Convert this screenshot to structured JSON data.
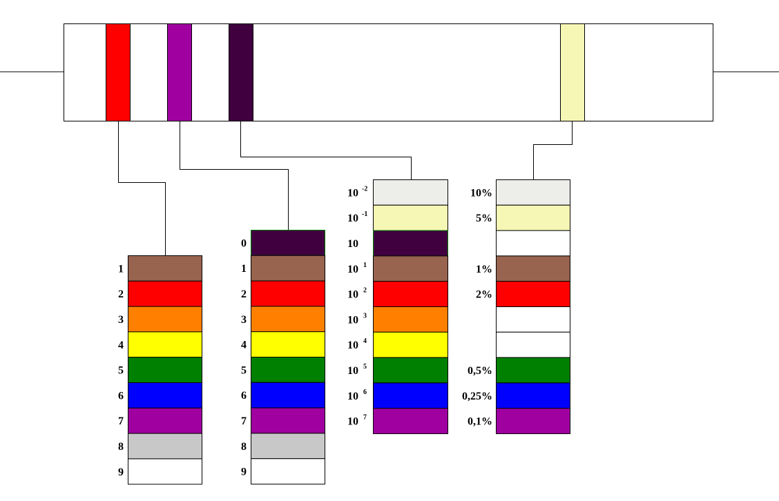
{
  "resistor": {
    "body_color": "#ffffff",
    "outline_color": "#000000",
    "bands": [
      {
        "name": "band-1-digit",
        "color": "#ff0000"
      },
      {
        "name": "band-2-digit",
        "color": "#a000a0"
      },
      {
        "name": "band-3-multiplier",
        "color": "#400040"
      },
      {
        "name": "band-4-tolerance",
        "color": "#f7f7b5"
      }
    ]
  },
  "tables": {
    "first_digit": {
      "rows": [
        {
          "label": "1",
          "color": "#98634f"
        },
        {
          "label": "2",
          "color": "#ff0000"
        },
        {
          "label": "3",
          "color": "#ff8000"
        },
        {
          "label": "4",
          "color": "#ffff00"
        },
        {
          "label": "5",
          "color": "#008000"
        },
        {
          "label": "6",
          "color": "#0000ff"
        },
        {
          "label": "7",
          "color": "#a000a0"
        },
        {
          "label": "8",
          "color": "#c8c8c8"
        },
        {
          "label": "9",
          "color": "#ffffff"
        }
      ]
    },
    "second_digit": {
      "rows": [
        {
          "label": "0",
          "color": "#400040"
        },
        {
          "label": "1",
          "color": "#98634f"
        },
        {
          "label": "2",
          "color": "#ff0000"
        },
        {
          "label": "3",
          "color": "#ff8000"
        },
        {
          "label": "4",
          "color": "#ffff00"
        },
        {
          "label": "5",
          "color": "#008000"
        },
        {
          "label": "6",
          "color": "#0000ff"
        },
        {
          "label": "7",
          "color": "#a000a0"
        },
        {
          "label": "8",
          "color": "#c8c8c8"
        },
        {
          "label": "9",
          "color": "#ffffff"
        }
      ]
    },
    "multiplier": {
      "rows": [
        {
          "base": "10",
          "exp": "-2",
          "color": "#ededea"
        },
        {
          "base": "10",
          "exp": "-1",
          "color": "#f7f7b5"
        },
        {
          "base": "10",
          "exp": "",
          "color": "#400040"
        },
        {
          "base": "10",
          "exp": "1",
          "color": "#98634f"
        },
        {
          "base": "10",
          "exp": "2",
          "color": "#ff0000"
        },
        {
          "base": "10",
          "exp": "3",
          "color": "#ff8000"
        },
        {
          "base": "10",
          "exp": "4",
          "color": "#ffff00"
        },
        {
          "base": "10",
          "exp": "5",
          "color": "#008000"
        },
        {
          "base": "10",
          "exp": "6",
          "color": "#0000ff"
        },
        {
          "base": "10",
          "exp": "7",
          "color": "#a000a0"
        }
      ]
    },
    "tolerance": {
      "rows": [
        {
          "label": "10%",
          "color": "#ededea"
        },
        {
          "label": "5%",
          "color": "#f7f7b5"
        },
        {
          "label": "",
          "color": "#ffffff"
        },
        {
          "label": "1%",
          "color": "#98634f"
        },
        {
          "label": "2%",
          "color": "#ff0000"
        },
        {
          "label": "",
          "color": "#ffffff"
        },
        {
          "label": "",
          "color": "#ffffff"
        },
        {
          "label": "0,5%",
          "color": "#008000"
        },
        {
          "label": "0,25%",
          "color": "#0000ff"
        },
        {
          "label": "0,1%",
          "color": "#a000a0"
        }
      ]
    }
  }
}
